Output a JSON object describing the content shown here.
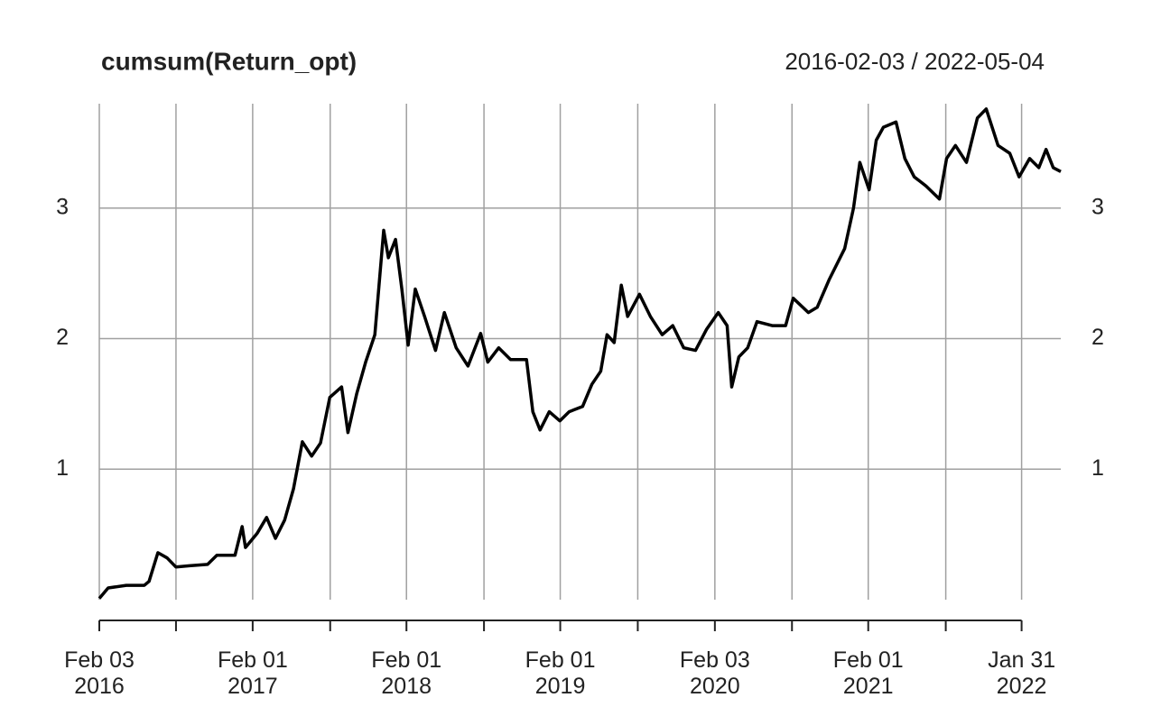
{
  "chart_data": {
    "type": "line",
    "title": "cumsum(Return_opt)",
    "subtitle": "2016-02-03 / 2022-05-04",
    "x": [
      "2016-02-03",
      "2016-02-24",
      "2016-04-07",
      "2016-05-20",
      "2016-05-31",
      "2016-06-21",
      "2016-07-13",
      "2016-08-03",
      "2016-09-04",
      "2016-10-17",
      "2016-11-08",
      "2016-12-21",
      "2017-01-07",
      "2017-01-15",
      "2017-02-12",
      "2017-03-06",
      "2017-03-27",
      "2017-04-18",
      "2017-05-09",
      "2017-05-30",
      "2017-06-21",
      "2017-07-12",
      "2017-08-03",
      "2017-08-31",
      "2017-09-15",
      "2017-10-06",
      "2017-10-27",
      "2017-11-18",
      "2017-12-09",
      "2017-12-20",
      "2018-01-06",
      "2018-01-21",
      "2018-02-05",
      "2018-02-22",
      "2018-03-16",
      "2018-04-11",
      "2018-05-02",
      "2018-05-30",
      "2018-06-27",
      "2018-07-27",
      "2018-08-13",
      "2018-09-08",
      "2018-10-06",
      "2018-11-13",
      "2018-11-28",
      "2018-12-15",
      "2019-01-06",
      "2019-01-31",
      "2019-02-22",
      "2019-03-26",
      "2019-04-17",
      "2019-05-08",
      "2019-05-23",
      "2019-06-09",
      "2019-06-26",
      "2019-07-11",
      "2019-08-08",
      "2019-09-03",
      "2019-10-01",
      "2019-10-26",
      "2019-11-21",
      "2019-12-19",
      "2020-01-14",
      "2020-02-11",
      "2020-03-03",
      "2020-03-14",
      "2020-03-31",
      "2020-04-21",
      "2020-05-13",
      "2020-06-18",
      "2020-07-20",
      "2020-08-07",
      "2020-09-12",
      "2020-10-03",
      "2020-10-31",
      "2020-12-07",
      "2020-12-28",
      "2021-01-12",
      "2021-02-03",
      "2021-02-20",
      "2021-03-09",
      "2021-04-08",
      "2021-04-29",
      "2021-05-21",
      "2021-06-18",
      "2021-07-20",
      "2021-08-06",
      "2021-08-27",
      "2021-09-22",
      "2021-10-18",
      "2021-11-08",
      "2021-12-06",
      "2022-01-03",
      "2022-01-25",
      "2022-02-19",
      "2022-03-13",
      "2022-03-30",
      "2022-04-16",
      "2022-05-04"
    ],
    "series": [
      {
        "name": "cumsum(Return_opt)",
        "color": "#000000",
        "values": [
          0.01,
          0.09,
          0.11,
          0.11,
          0.14,
          0.36,
          0.32,
          0.25,
          0.26,
          0.27,
          0.34,
          0.34,
          0.56,
          0.4,
          0.51,
          0.63,
          0.47,
          0.61,
          0.85,
          1.21,
          1.1,
          1.2,
          1.55,
          1.63,
          1.28,
          1.58,
          1.82,
          2.03,
          2.83,
          2.62,
          2.76,
          2.38,
          1.95,
          2.38,
          2.17,
          1.91,
          2.2,
          1.93,
          1.79,
          2.04,
          1.82,
          1.93,
          1.84,
          1.84,
          1.44,
          1.3,
          1.44,
          1.37,
          1.44,
          1.48,
          1.65,
          1.75,
          2.03,
          1.97,
          2.41,
          2.17,
          2.34,
          2.17,
          2.03,
          2.1,
          1.93,
          1.91,
          2.07,
          2.2,
          2.1,
          1.63,
          1.86,
          1.93,
          2.13,
          2.1,
          2.1,
          2.31,
          2.2,
          2.24,
          2.45,
          2.69,
          3.0,
          3.35,
          3.14,
          3.52,
          3.62,
          3.66,
          3.38,
          3.24,
          3.17,
          3.07,
          3.38,
          3.48,
          3.35,
          3.69,
          3.76,
          3.48,
          3.42,
          3.24,
          3.38,
          3.31,
          3.45,
          3.31,
          3.28
        ]
      }
    ],
    "xlim": [
      "2016-02-03",
      "2022-05-04"
    ],
    "xticks": [
      {
        "value": "2016-02-03",
        "label": "Feb 03\n2016"
      },
      {
        "value": "2017-02-01",
        "label": "Feb 01\n2017"
      },
      {
        "value": "2018-02-01",
        "label": "Feb 01\n2018"
      },
      {
        "value": "2019-02-01",
        "label": "Feb 01\n2019"
      },
      {
        "value": "2020-02-03",
        "label": "Feb 03\n2020"
      },
      {
        "value": "2021-02-01",
        "label": "Feb 01\n2021"
      },
      {
        "value": "2022-01-31",
        "label": "Jan 31\n2022"
      }
    ],
    "xminorticks": [
      "2016-08-03",
      "2017-08-04",
      "2018-08-04",
      "2019-08-04",
      "2020-08-04",
      "2021-08-04"
    ],
    "ylim": [
      0,
      3.8
    ],
    "yticks": [
      1,
      2,
      3
    ],
    "grid": true
  }
}
